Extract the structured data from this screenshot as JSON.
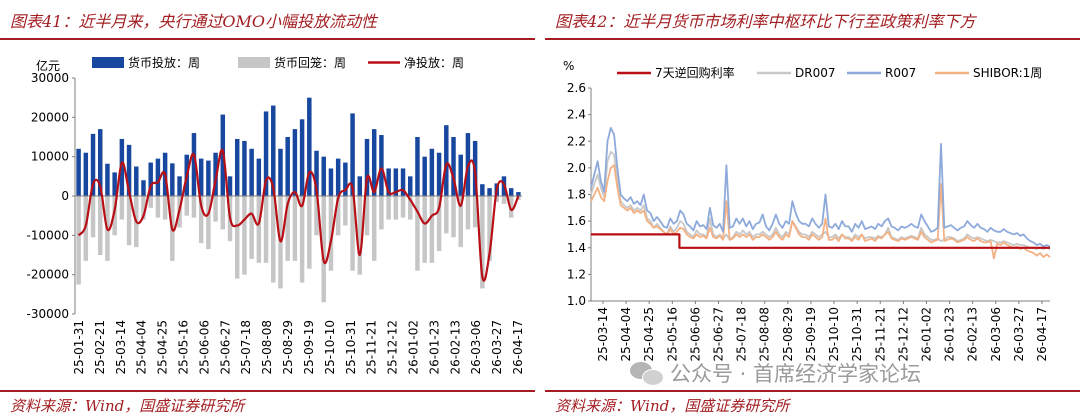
{
  "left": {
    "title": "图表41：近半月来，央行通过OMO小幅投放流动性",
    "source": "资料来源：Wind，国盛证券研究所",
    "chart_data": {
      "type": "bar",
      "ylabel": "亿元",
      "ylim": [
        -30000,
        30000
      ],
      "yticks": [
        30000,
        20000,
        10000,
        0,
        -10000,
        -20000,
        -30000
      ],
      "x_tick_labels": [
        "25-01-31",
        "25-02-21",
        "25-03-14",
        "25-04-04",
        "25-04-25",
        "25-05-16",
        "25-06-06",
        "25-06-27",
        "25-07-18",
        "25-08-08",
        "25-08-29",
        "25-09-19",
        "25-10-10",
        "25-10-31",
        "25-11-21",
        "25-12-12",
        "26-01-02",
        "26-01-23",
        "26-02-13",
        "26-03-06",
        "26-03-27",
        "26-04-17"
      ],
      "legend_position": "top",
      "series": [
        {
          "name": "货币投放：周",
          "type": "bar",
          "color": "#17479e",
          "values": [
            12000,
            11000,
            15800,
            17000,
            8200,
            6000,
            14500,
            13000,
            7500,
            4000,
            8500,
            9500,
            11000,
            8300,
            5000,
            10500,
            16000,
            9500,
            9000,
            11000,
            20700,
            5000,
            14500,
            14000,
            12000,
            9500,
            21500,
            23000,
            12000,
            15000,
            17000,
            19500,
            25000,
            11500,
            10000,
            7000,
            9500,
            8500,
            21000,
            5000,
            14500,
            17000,
            15500,
            7000,
            7000,
            7000,
            5000,
            15000,
            10000,
            12000,
            11000,
            18000,
            15000,
            10500,
            16000,
            14000,
            3000,
            2000,
            3200,
            5000,
            2000,
            1000
          ]
        },
        {
          "name": "货币回笼：周",
          "type": "bar",
          "color": "#c6c6c6",
          "values": [
            -22500,
            -16500,
            -10500,
            -15000,
            -16500,
            -10000,
            -6000,
            -12500,
            -13000,
            -6000,
            -3000,
            -5500,
            -6000,
            -16500,
            -8000,
            -5000,
            -5500,
            -12000,
            -13500,
            -6500,
            -8500,
            -11500,
            -21000,
            -20000,
            -16000,
            -17000,
            -17000,
            -22000,
            -23500,
            -16500,
            -16500,
            -22000,
            -18500,
            -10000,
            -27000,
            -19000,
            -10000,
            -7500,
            -19000,
            -20000,
            -10000,
            -16500,
            -8500,
            -6000,
            -6000,
            -5500,
            -6000,
            -19000,
            -17000,
            -17000,
            -14000,
            -9500,
            -10500,
            -13000,
            -8500,
            -8000,
            -23500,
            -16500,
            -1500,
            -2000,
            -5500,
            -1000
          ]
        },
        {
          "name": "净投放：周",
          "type": "line",
          "color": "#b80f16",
          "values": [
            -10000,
            -7500,
            3000,
            2500,
            -8500,
            -3500,
            8500,
            1000,
            -6500,
            -5000,
            2500,
            3500,
            5500,
            -8500,
            -3500,
            5000,
            10500,
            -2500,
            -4500,
            4000,
            11500,
            -5500,
            -7500,
            -6000,
            -4500,
            -7000,
            4000,
            2000,
            -11500,
            -2000,
            1000,
            -2500,
            6000,
            1500,
            -16500,
            -11500,
            -500,
            1500,
            2000,
            -15000,
            4500,
            1000,
            7000,
            1000,
            1000,
            1500,
            -1000,
            -4000,
            -7000,
            -5000,
            -3000,
            8000,
            4500,
            -2500,
            7500,
            6000,
            -20500,
            -14500,
            1700,
            3000,
            -3500,
            0
          ]
        }
      ]
    }
  },
  "right": {
    "title": "图表42：近半月货币市场利率中枢环比下行至政策利率下方",
    "source": "资料来源：Wind，国盛证券研究所",
    "chart_data": {
      "type": "line",
      "ylabel": "%",
      "ylim": [
        1.0,
        2.6
      ],
      "yticks": [
        2.6,
        2.4,
        2.2,
        2.0,
        1.8,
        1.6,
        1.4,
        1.2,
        1.0
      ],
      "x_tick_labels": [
        "25-03-14",
        "25-04-04",
        "25-04-25",
        "25-05-16",
        "25-06-06",
        "25-06-27",
        "25-07-18",
        "25-08-08",
        "25-08-29",
        "25-09-19",
        "25-10-10",
        "25-10-31",
        "25-11-21",
        "25-12-12",
        "26-01-02",
        "26-01-23",
        "26-02-13",
        "26-03-06",
        "26-03-27",
        "26-04-17"
      ],
      "legend_position": "top",
      "series": [
        {
          "name": "7天逆回购利率",
          "color": "#b80f16",
          "values": [
            1.5,
            1.5,
            1.5,
            1.5,
            1.5,
            1.5,
            1.5,
            1.5,
            1.5,
            1.5,
            1.5,
            1.5,
            1.5,
            1.5,
            1.5,
            1.5,
            1.5,
            1.5,
            1.5,
            1.5,
            1.5,
            1.5,
            1.5,
            1.5,
            1.5,
            1.5,
            1.4,
            1.4,
            1.4,
            1.4,
            1.4,
            1.4,
            1.4,
            1.4,
            1.4,
            1.4,
            1.4,
            1.4,
            1.4,
            1.4,
            1.4,
            1.4,
            1.4,
            1.4,
            1.4,
            1.4,
            1.4,
            1.4,
            1.4,
            1.4,
            1.4,
            1.4,
            1.4,
            1.4,
            1.4,
            1.4,
            1.4,
            1.4,
            1.4,
            1.4,
            1.4,
            1.4,
            1.4,
            1.4,
            1.4,
            1.4,
            1.4,
            1.4,
            1.4,
            1.4,
            1.4,
            1.4,
            1.4,
            1.4,
            1.4,
            1.4,
            1.4,
            1.4,
            1.4,
            1.4,
            1.4,
            1.4,
            1.4,
            1.4,
            1.4,
            1.4,
            1.4,
            1.4,
            1.4,
            1.4,
            1.4,
            1.4,
            1.4,
            1.4,
            1.4,
            1.4,
            1.4,
            1.4,
            1.4,
            1.4,
            1.4,
            1.4,
            1.4,
            1.4,
            1.4,
            1.4,
            1.4,
            1.4,
            1.4,
            1.4,
            1.4,
            1.4,
            1.4,
            1.4,
            1.4,
            1.4,
            1.4,
            1.4,
            1.4,
            1.4,
            1.4,
            1.4,
            1.4,
            1.4,
            1.4,
            1.4,
            1.4,
            1.4,
            1.4,
            1.4,
            1.4,
            1.4,
            1.4,
            1.4,
            1.4,
            1.4
          ]
        },
        {
          "name": "DR007",
          "color": "#c8c8c8",
          "values": [
            1.8,
            1.88,
            1.95,
            1.85,
            1.78,
            2.05,
            2.12,
            2.1,
            1.9,
            1.75,
            1.72,
            1.7,
            1.72,
            1.68,
            1.7,
            1.68,
            1.72,
            1.62,
            1.6,
            1.55,
            1.58,
            1.55,
            1.52,
            1.5,
            1.56,
            1.52,
            1.55,
            1.6,
            1.58,
            1.52,
            1.5,
            1.48,
            1.53,
            1.5,
            1.5,
            1.48,
            1.62,
            1.5,
            1.48,
            1.5,
            1.47,
            1.5,
            1.46,
            1.48,
            1.52,
            1.5,
            1.53,
            1.5,
            1.52,
            1.48,
            1.5,
            1.5,
            1.52,
            1.5,
            1.48,
            1.5,
            1.55,
            1.5,
            1.48,
            1.52,
            1.5,
            1.6,
            1.56,
            1.52,
            1.5,
            1.5,
            1.48,
            1.52,
            1.5,
            1.48,
            1.5,
            1.52,
            1.48,
            1.48,
            1.5,
            1.47,
            1.5,
            1.48,
            1.48,
            1.46,
            1.5,
            1.48,
            1.5,
            1.47,
            1.48,
            1.48,
            1.47,
            1.49,
            1.48,
            1.5,
            1.55,
            1.48,
            1.47,
            1.46,
            1.48,
            1.47,
            1.48,
            1.49,
            1.48,
            1.47,
            1.55,
            1.5,
            1.48,
            1.46,
            1.46,
            1.47,
            1.45,
            1.46,
            1.48,
            1.48,
            1.47,
            1.45,
            1.46,
            1.47,
            1.5,
            1.48,
            1.47,
            1.48,
            1.47,
            1.46,
            1.45,
            1.46,
            1.45,
            1.44,
            1.44,
            1.45,
            1.44,
            1.43,
            1.42,
            1.43,
            1.42,
            1.42,
            1.41,
            1.4,
            1.4,
            1.39,
            1.4,
            1.39,
            1.4,
            1.39
          ]
        },
        {
          "name": "R007",
          "color": "#8eaadb",
          "values": [
            1.85,
            1.95,
            2.05,
            1.9,
            1.82,
            2.2,
            2.3,
            2.25,
            2.0,
            1.8,
            1.77,
            1.75,
            1.78,
            1.73,
            1.75,
            1.72,
            1.8,
            1.68,
            1.66,
            1.6,
            1.63,
            1.6,
            1.56,
            1.55,
            1.62,
            1.58,
            1.6,
            1.68,
            1.65,
            1.58,
            1.56,
            1.53,
            1.6,
            1.56,
            1.57,
            1.54,
            1.7,
            1.57,
            1.55,
            1.58,
            1.52,
            2.02,
            1.55,
            1.56,
            1.62,
            1.58,
            1.62,
            1.56,
            1.6,
            1.54,
            1.58,
            1.59,
            1.65,
            1.56,
            1.53,
            1.58,
            1.65,
            1.58,
            1.55,
            1.6,
            1.58,
            1.75,
            1.66,
            1.6,
            1.58,
            1.58,
            1.56,
            1.62,
            1.58,
            1.55,
            1.58,
            1.8,
            1.56,
            1.55,
            1.58,
            1.54,
            1.6,
            1.56,
            1.56,
            1.52,
            1.58,
            1.55,
            1.6,
            1.54,
            1.55,
            1.56,
            1.54,
            1.58,
            1.56,
            1.6,
            1.62,
            1.56,
            1.55,
            1.53,
            1.56,
            1.55,
            1.56,
            1.58,
            1.56,
            1.55,
            1.65,
            1.6,
            1.56,
            1.52,
            1.53,
            1.55,
            2.18,
            1.55,
            1.56,
            1.57,
            1.55,
            1.53,
            1.55,
            1.56,
            1.6,
            1.57,
            1.55,
            1.58,
            1.55,
            1.54,
            1.52,
            1.55,
            1.53,
            1.52,
            1.52,
            1.54,
            1.52,
            1.51,
            1.5,
            1.51,
            1.49,
            1.5,
            1.47,
            1.45,
            1.44,
            1.42,
            1.43,
            1.41,
            1.42,
            1.41
          ]
        },
        {
          "name": "SHIBOR:1周",
          "color": "#f4b183",
          "values": [
            1.75,
            1.8,
            1.85,
            1.78,
            1.75,
            1.9,
            2.0,
            2.02,
            1.85,
            1.72,
            1.7,
            1.68,
            1.7,
            1.66,
            1.68,
            1.66,
            1.68,
            1.6,
            1.58,
            1.55,
            1.56,
            1.54,
            1.52,
            1.5,
            1.54,
            1.5,
            1.52,
            1.55,
            1.54,
            1.5,
            1.48,
            1.47,
            1.5,
            1.48,
            1.49,
            1.47,
            1.55,
            1.48,
            1.47,
            1.49,
            1.46,
            1.75,
            1.46,
            1.47,
            1.5,
            1.48,
            1.5,
            1.48,
            1.5,
            1.46,
            1.48,
            1.48,
            1.5,
            1.48,
            1.46,
            1.48,
            1.52,
            1.48,
            1.46,
            1.5,
            1.48,
            1.6,
            1.55,
            1.5,
            1.48,
            1.48,
            1.46,
            1.5,
            1.48,
            1.46,
            1.48,
            1.62,
            1.46,
            1.46,
            1.48,
            1.45,
            1.5,
            1.47,
            1.47,
            1.45,
            1.48,
            1.46,
            1.5,
            1.45,
            1.46,
            1.47,
            1.45,
            1.48,
            1.47,
            1.5,
            1.52,
            1.47,
            1.46,
            1.45,
            1.47,
            1.46,
            1.47,
            1.48,
            1.47,
            1.46,
            1.52,
            1.48,
            1.46,
            1.44,
            1.45,
            1.46,
            1.88,
            1.45,
            1.46,
            1.47,
            1.46,
            1.44,
            1.45,
            1.46,
            1.48,
            1.46,
            1.45,
            1.47,
            1.45,
            1.44,
            1.44,
            1.45,
            1.32,
            1.43,
            1.42,
            1.44,
            1.42,
            1.41,
            1.4,
            1.41,
            1.39,
            1.4,
            1.38,
            1.37,
            1.36,
            1.34,
            1.36,
            1.33,
            1.35,
            1.33
          ]
        }
      ]
    }
  },
  "watermark": {
    "text": "公众号 · 首席经济学家论坛",
    "icon": "wechat-icon"
  }
}
